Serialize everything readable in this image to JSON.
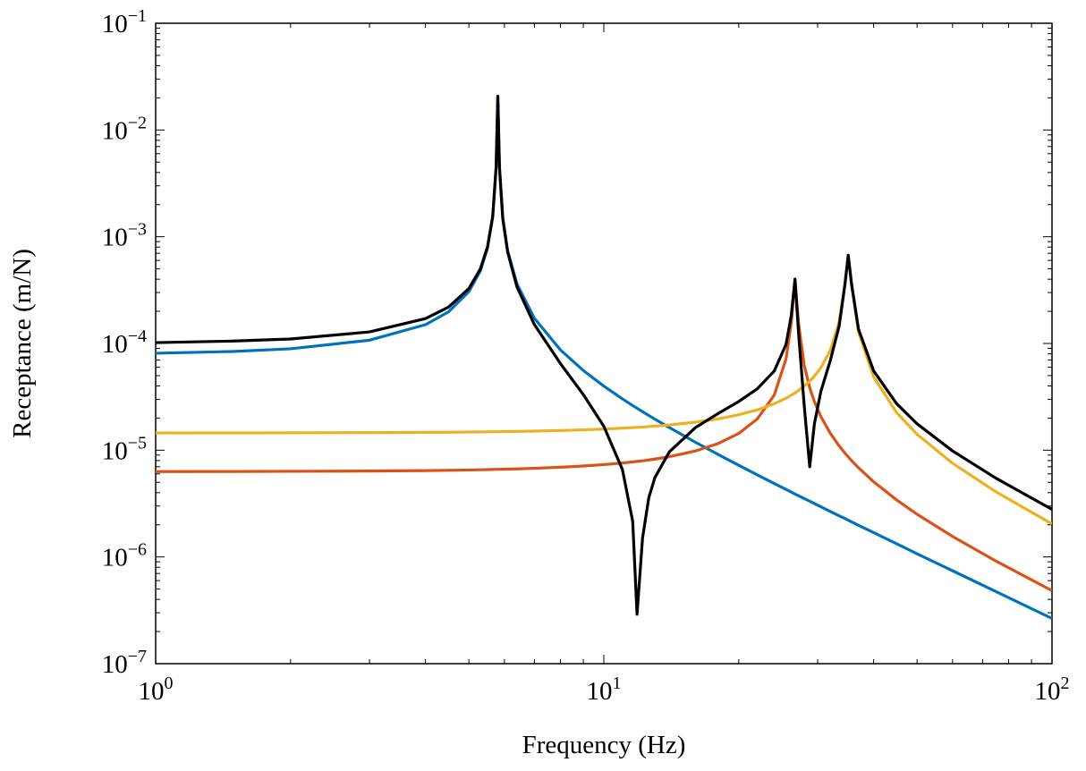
{
  "chart_data": {
    "type": "line",
    "xlabel": "Frequency (Hz)",
    "ylabel": "Receptance (m/N)",
    "xscale": "log",
    "yscale": "log",
    "xlim": [
      1,
      100
    ],
    "ylim": [
      1e-07,
      0.1
    ],
    "xticks": [
      {
        "value": 1,
        "label": "10",
        "exp": "0"
      },
      {
        "value": 10,
        "label": "10",
        "exp": "1"
      },
      {
        "value": 100,
        "label": "10",
        "exp": "2"
      }
    ],
    "yticks": [
      {
        "value": 1e-07,
        "label": "10",
        "exp": "−7"
      },
      {
        "value": 1e-06,
        "label": "10",
        "exp": "−6"
      },
      {
        "value": 1e-05,
        "label": "10",
        "exp": "−5"
      },
      {
        "value": 0.0001,
        "label": "10",
        "exp": "−4"
      },
      {
        "value": 0.001,
        "label": "10",
        "exp": "−3"
      },
      {
        "value": 0.01,
        "label": "10",
        "exp": "−2"
      },
      {
        "value": 0.1,
        "label": "10",
        "exp": "−1"
      }
    ],
    "xminorticks": [
      2,
      3,
      4,
      5,
      6,
      7,
      8,
      9,
      20,
      30,
      40,
      50,
      60,
      70,
      80,
      90
    ],
    "yminorticks": [
      2e-07,
      3e-07,
      4e-07,
      5e-07,
      6e-07,
      7e-07,
      8e-07,
      9e-07,
      2e-06,
      3e-06,
      4e-06,
      5e-06,
      6e-06,
      7e-06,
      8e-06,
      9e-06,
      2e-05,
      3e-05,
      4e-05,
      5e-05,
      6e-05,
      7e-05,
      8e-05,
      9e-05,
      0.0002,
      0.0003,
      0.0004,
      0.0005,
      0.0006,
      0.0007,
      0.0008,
      0.0009,
      0.002,
      0.003,
      0.004,
      0.005,
      0.006,
      0.007,
      0.008,
      0.009,
      0.02,
      0.03,
      0.04,
      0.05,
      0.06,
      0.07,
      0.08,
      0.09
    ],
    "grid": false,
    "x": [
      1,
      1.5,
      2,
      3,
      4,
      4.5,
      5,
      5.3,
      5.5,
      5.65,
      5.75,
      5.8,
      5.85,
      5.95,
      6.1,
      6.4,
      7,
      8,
      9,
      10,
      11,
      11.6,
      11.86,
      12.2,
      12.6,
      13,
      14,
      16,
      18,
      20,
      22,
      24,
      25.5,
      26.2,
      26.7,
      27.2,
      28,
      28.8,
      29.5,
      30.5,
      32,
      33.5,
      34.5,
      35.1,
      35.7,
      37,
      40,
      45,
      50,
      60,
      75,
      100
    ],
    "series": [
      {
        "color": "#0072bd",
        "values": [
          8.1e-05,
          8.42e-05,
          8.92e-05,
          0.0001073,
          0.0001499,
          0.0001975,
          0.0003061,
          0.0004764,
          0.00078,
          0.001534,
          0.00446,
          0.0207,
          0.00445,
          0.0015,
          0.000741,
          0.0003612,
          0.0001721,
          8.71e-05,
          5.583e-05,
          3.984e-05,
          3.027e-05,
          2.62e-05,
          2.471e-05,
          2.295e-05,
          2.113e-05,
          1.953e-05,
          1.629e-05,
          1.189e-05,
          9.11e-06,
          7.22e-06,
          5.87e-06,
          4.88e-06,
          4.29e-06,
          4.05e-06,
          3.89e-06,
          3.74e-06,
          3.52e-06,
          3.33e-06,
          3.16e-06,
          2.95e-06,
          2.67e-06,
          2.43e-06,
          2.29e-06,
          2.21e-06,
          2.13e-06,
          1.98e-06,
          1.69e-06,
          1.33e-06,
          1.07e-06,
          7.42e-07,
          4.73e-07,
          2.65e-07
        ]
      },
      {
        "color": "#d95319",
        "values": [
          6.3e-06,
          6.32e-06,
          6.34e-06,
          6.38e-06,
          6.44e-06,
          6.48e-06,
          6.53e-06,
          6.56e-06,
          6.58e-06,
          6.6e-06,
          6.62e-06,
          6.62e-06,
          6.62e-06,
          6.63e-06,
          6.65e-06,
          6.68e-06,
          6.77e-06,
          6.92e-06,
          7.11e-06,
          7.33e-06,
          7.59e-06,
          7.77e-06,
          7.85e-06,
          7.96e-06,
          8.1e-06,
          8.26e-06,
          8.69e-06,
          9.83e-06,
          1.155e-05,
          1.435e-05,
          1.962e-05,
          3.281e-05,
          7.17e-05,
          0.0001567,
          0.000399,
          0.0001533,
          6.24e-05,
          3.85e-05,
          2.855e-05,
          2.066e-05,
          1.444e-05,
          1.097e-05,
          9.41e-06,
          8.65e-06,
          8e-06,
          6.85e-06,
          5.06e-06,
          3.42e-06,
          2.51e-06,
          1.556e-06,
          9.14e-07,
          4.83e-07
        ]
      },
      {
        "color": "#edb120",
        "values": [
          1.45e-05,
          1.452e-05,
          1.455e-05,
          1.461e-05,
          1.469e-05,
          1.474e-05,
          1.48e-05,
          1.484e-05,
          1.486e-05,
          1.489e-05,
          1.489e-05,
          1.49e-05,
          1.49e-05,
          1.492e-05,
          1.495e-05,
          1.5e-05,
          1.51e-05,
          1.529e-05,
          1.552e-05,
          1.578e-05,
          1.608e-05,
          1.628e-05,
          1.637e-05,
          1.649e-05,
          1.664e-05,
          1.681e-05,
          1.724e-05,
          1.83e-05,
          1.967e-05,
          2.147e-05,
          2.388e-05,
          2.723e-05,
          3.071e-05,
          3.275e-05,
          3.442e-05,
          3.63e-05,
          3.988e-05,
          4.437e-05,
          4.939e-05,
          5.921e-05,
          8.59e-05,
          0.0001585,
          0.000363,
          0.000671,
          0.000354,
          0.0001278,
          4.85e-05,
          2.253e-05,
          1.409e-05,
          7.54e-06,
          4.07e-06,
          2.04e-06
        ]
      },
      {
        "color": "#000000",
        "values": [
          0.0001018,
          0.0001054,
          0.0001101,
          0.0001283,
          0.000171,
          0.0002187,
          0.0003274,
          0.0004978,
          0.000801,
          0.001555,
          0.00448,
          0.0207,
          0.00443,
          0.001479,
          0.00072,
          0.0003395,
          0.0001502,
          6.49e-05,
          3.32e-05,
          1.673e-05,
          6.6e-06,
          2.15e-06,
          2.9e-07,
          1.5e-06,
          3.6e-06,
          5.54e-06,
          9.64e-06,
          1.624e-05,
          2.211e-05,
          2.86e-05,
          3.76e-05,
          5.52e-05,
          9.81e-05,
          0.0001836,
          0.0004,
          0.000124,
          2.6e-05,
          7e-06,
          1.768e-05,
          3.56e-05,
          6.88e-05,
          0.0001455,
          0.000352,
          0.000671,
          0.000363,
          0.0001366,
          5.53e-05,
          2.728e-05,
          1.767e-05,
          9.84e-06,
          5.46e-06,
          2.79e-06
        ]
      }
    ]
  }
}
